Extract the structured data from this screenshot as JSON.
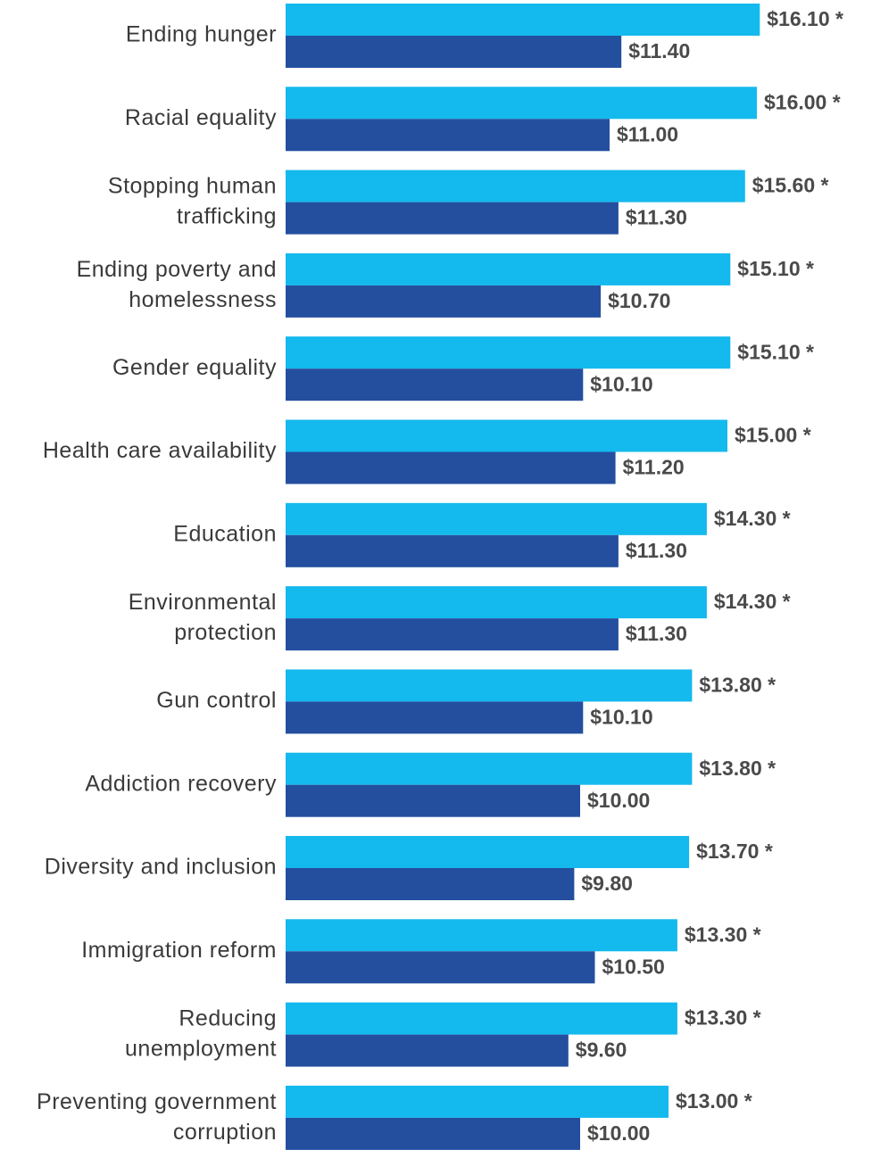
{
  "chart_data": {
    "type": "bar",
    "orientation": "horizontal",
    "categories": [
      "Ending hunger",
      "Racial equality",
      "Stopping human\ntrafficking",
      "Ending poverty and\nhomelessness",
      "Gender equality",
      "Health care availability",
      "Education",
      "Environmental\nprotection",
      "Gun control",
      "Addiction recovery",
      "Diversity and inclusion",
      "Immigration reform",
      "Reducing\nunemployment",
      "Preventing government\ncorruption"
    ],
    "series": [
      {
        "color": "#14b9ed",
        "values": [
          16.1,
          16.0,
          15.6,
          15.1,
          15.1,
          15.0,
          14.3,
          14.3,
          13.8,
          13.8,
          13.7,
          13.3,
          13.3,
          13.0
        ],
        "value_labels": [
          "$16.10 *",
          "$16.00 *",
          "$15.60 *",
          "$15.10 *",
          "$15.10 *",
          "$15.00 *",
          "$14.30 *",
          "$14.30 *",
          "$13.80 *",
          "$13.80 *",
          "$13.70 *",
          "$13.30 *",
          "$13.30 *",
          "$13.00 *"
        ]
      },
      {
        "color": "#244f9f",
        "values": [
          11.4,
          11.0,
          11.3,
          10.7,
          10.1,
          11.2,
          11.3,
          11.3,
          10.1,
          10.0,
          9.8,
          10.5,
          9.6,
          10.0
        ],
        "value_labels": [
          "$11.40",
          "$11.00",
          "$11.30",
          "$10.70",
          "$10.10",
          "$11.20",
          "$11.30",
          "$11.30",
          "$10.10",
          "$10.00",
          "$9.80",
          "$10.50",
          "$9.60",
          "$10.00"
        ]
      }
    ]
  }
}
